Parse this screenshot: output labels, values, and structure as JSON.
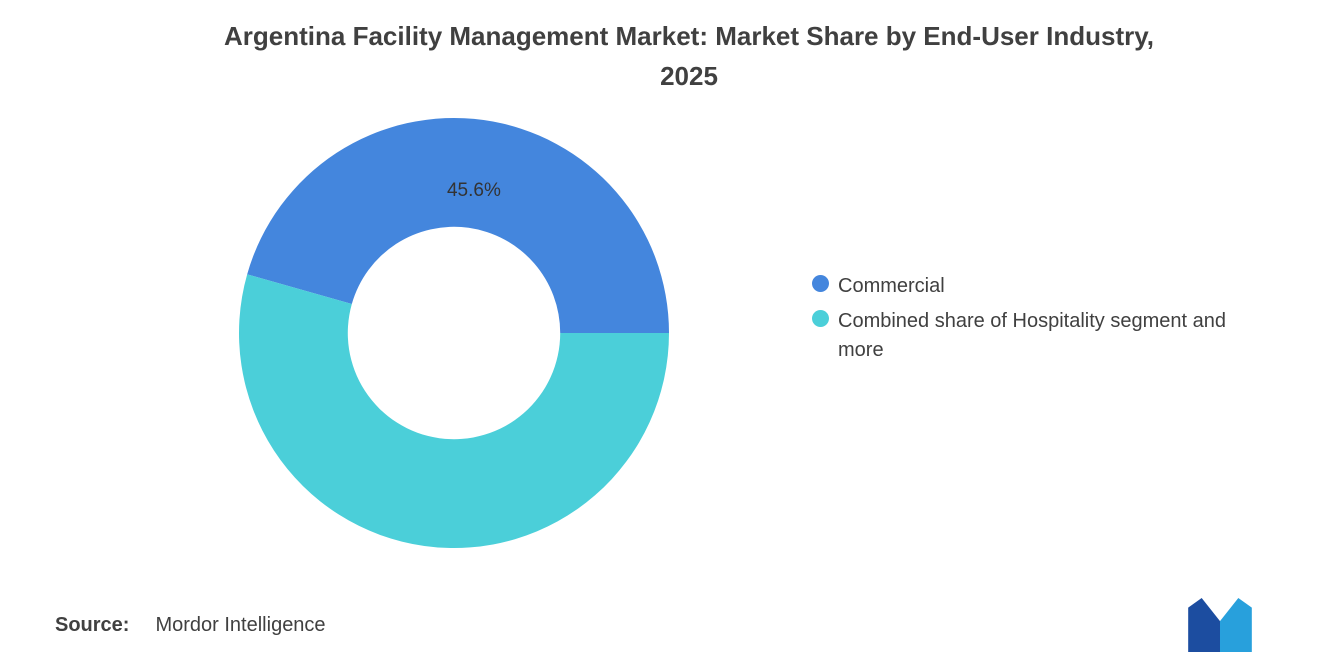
{
  "title": {
    "line1": "Argentina Facility Management Market: Market Share by End-User Industry,",
    "line2": "2025",
    "full": "Argentina Facility Management Market: Market Share by End-User Industry, 2025"
  },
  "chart_data": {
    "type": "pie",
    "subtype": "donut",
    "title": "Argentina Facility Management Market: Market Share by End-User Industry, 2025",
    "slices": [
      {
        "label": "Commercial",
        "value": 45.6,
        "color": "#4486dd",
        "data_label": "45.6%"
      },
      {
        "label": "Combined share of Hospitality segment and more",
        "value": 54.4,
        "color": "#4bcfd9",
        "data_label": ""
      }
    ],
    "inner_radius_ratio": 0.494,
    "start_angle_deg": 0,
    "direction": "counterclockwise",
    "legend_position": "right",
    "data_label_color": "#333333",
    "background_color": "#ffffff"
  },
  "legend": {
    "items": [
      {
        "label": "Commercial",
        "color": "#4486dd"
      },
      {
        "label": "Combined share of Hospitality segment and more",
        "color": "#4bcfd9"
      }
    ]
  },
  "source": {
    "label": "Source:",
    "value": "Mordor Intelligence"
  },
  "logo": {
    "name": "Mordor Intelligence",
    "left_color": "#1c4da0",
    "right_color": "#28a0dc"
  }
}
